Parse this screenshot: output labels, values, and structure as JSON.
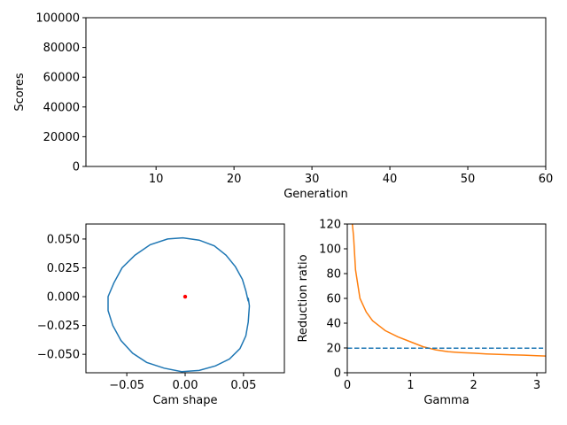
{
  "chart_data": [
    {
      "type": "line",
      "xlabel": "Generation",
      "ylabel": "Scores",
      "xlim": [
        1,
        60
      ],
      "ylim": [
        0,
        100000
      ],
      "xticks": [
        10,
        20,
        30,
        40,
        50,
        60
      ],
      "yticks": [
        0,
        20000,
        40000,
        60000,
        80000,
        100000
      ],
      "series": []
    },
    {
      "type": "line",
      "xlabel": "Cam shape",
      "ylabel": "",
      "xlim": [
        -0.085,
        0.085
      ],
      "ylim": [
        -0.066,
        0.063
      ],
      "xticks": [
        -0.05,
        0.0,
        0.05
      ],
      "xtick_labels": [
        "−0.05",
        "0.00",
        "0.05"
      ],
      "yticks": [
        -0.05,
        -0.025,
        0.0,
        0.025,
        0.05
      ],
      "ytick_labels": [
        "−0.050",
        "−0.025",
        "0.000",
        "0.025",
        "0.050"
      ],
      "center_point": {
        "x": 0.0,
        "y": 0.0,
        "color": "#ff0000"
      },
      "series": [
        {
          "color": "#1f77b4",
          "points": [
            [
              0.054,
              -0.004
            ],
            [
              0.052,
              0.005
            ],
            [
              0.049,
              0.015
            ],
            [
              0.043,
              0.026
            ],
            [
              0.035,
              0.036
            ],
            [
              0.025,
              0.044
            ],
            [
              0.012,
              0.049
            ],
            [
              -0.002,
              0.051
            ],
            [
              -0.015,
              0.05
            ],
            [
              -0.03,
              0.045
            ],
            [
              -0.043,
              0.036
            ],
            [
              -0.054,
              0.025
            ],
            [
              -0.061,
              0.012
            ],
            [
              -0.066,
              0.0
            ],
            [
              -0.066,
              -0.012
            ],
            [
              -0.062,
              -0.025
            ],
            [
              -0.055,
              -0.038
            ],
            [
              -0.045,
              -0.049
            ],
            [
              -0.033,
              -0.057
            ],
            [
              -0.018,
              -0.062
            ],
            [
              -0.003,
              -0.065
            ],
            [
              0.012,
              -0.064
            ],
            [
              0.026,
              -0.06
            ],
            [
              0.038,
              -0.054
            ],
            [
              0.047,
              -0.045
            ],
            [
              0.052,
              -0.034
            ],
            [
              0.054,
              -0.022
            ],
            [
              0.055,
              -0.008
            ],
            [
              0.054,
              -0.001
            ]
          ]
        }
      ]
    },
    {
      "type": "line",
      "xlabel": "Gamma",
      "ylabel": "Reduction ratio",
      "xlim": [
        0,
        3.14
      ],
      "ylim": [
        0,
        120
      ],
      "xticks": [
        0,
        1,
        2,
        3
      ],
      "yticks": [
        0,
        20,
        40,
        60,
        80,
        100,
        120
      ],
      "series": [
        {
          "color": "#ff7f0e",
          "style": "solid",
          "x": [
            0.08,
            0.1,
            0.13,
            0.2,
            0.3,
            0.4,
            0.5,
            0.6,
            0.8,
            1.0,
            1.2,
            1.4,
            1.6,
            1.8,
            2.0,
            2.2,
            2.4,
            2.6,
            2.8,
            3.0,
            3.14
          ],
          "y": [
            120,
            110,
            83,
            60,
            49,
            42,
            38,
            34,
            29,
            25,
            21,
            18.5,
            17,
            16.3,
            15.8,
            15.2,
            14.8,
            14.5,
            14.2,
            13.8,
            13.5
          ]
        },
        {
          "color": "#1f77b4",
          "style": "dashed",
          "x": [
            0.0,
            3.1
          ],
          "y": [
            19.8,
            19.8
          ]
        }
      ]
    }
  ]
}
